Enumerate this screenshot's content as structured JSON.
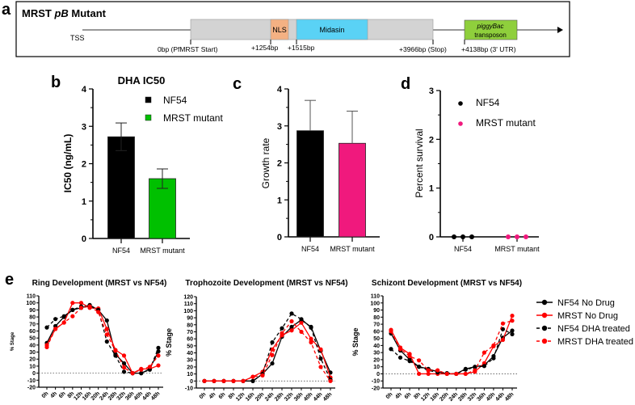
{
  "panel_labels": {
    "a": "a",
    "b": "b",
    "c": "c",
    "d": "d",
    "e": "e"
  },
  "gene_map": {
    "title_prefix": "MRST ",
    "title_italic": "pB",
    "title_suffix": " Mutant",
    "tss": "TSS",
    "nls": "NLS",
    "midasin": "Midasin",
    "pb_line1": "piggyBac",
    "pb_line2": "transposon",
    "positions": [
      "0bp (PfMRST Start)",
      "+1254bp",
      "+1515bp",
      "+3966bp (Stop)",
      "+4138bp (3' UTR)"
    ],
    "colors": {
      "gene": "#d3d3d3",
      "nls": "#f4b183",
      "midasin": "#5ad2f5",
      "transposon": "#8fcf3c"
    }
  },
  "chart_data": [
    {
      "type": "bar",
      "title": "DHA IC50",
      "ylabel": "IC50 (ng/mL)",
      "categories": [
        "NF54",
        "MRST mutant"
      ],
      "values": [
        2.72,
        1.6
      ],
      "errors": [
        0.37,
        0.26
      ],
      "colors": [
        "#000000",
        "#00c000"
      ],
      "yticks": [
        "0",
        "1",
        "2",
        "3",
        "4"
      ],
      "ylim": [
        0,
        4
      ],
      "legend": [
        "NF54",
        "MRST mutant"
      ]
    },
    {
      "type": "bar",
      "title": "",
      "ylabel": "Growth rate",
      "categories": [
        "NF54",
        "MRST mutant"
      ],
      "values": [
        2.87,
        2.53
      ],
      "errors": [
        0.82,
        0.87
      ],
      "colors": [
        "#000000",
        "#f0197d"
      ],
      "yticks": [
        "0",
        "1",
        "2",
        "3",
        "4"
      ],
      "ylim": [
        0,
        4
      ]
    },
    {
      "type": "scatter",
      "title": "",
      "ylabel": "Percent survival",
      "categories": [
        "NF54",
        "MRST mutant"
      ],
      "points": [
        [
          0,
          0,
          0
        ],
        [
          0,
          0,
          0
        ]
      ],
      "colors": [
        "#000000",
        "#f0197d"
      ],
      "yticks": [
        "0",
        "1",
        "2",
        "3"
      ],
      "ylim": [
        0,
        3
      ],
      "legend": [
        "NF54",
        "MRST mutant"
      ]
    },
    {
      "type": "line",
      "title": "Ring Development (MRST vs NF54)",
      "ylabel": "% Stage",
      "x": [
        "0h",
        "4h",
        "6h",
        "8h",
        "12h",
        "16h",
        "20h",
        "24h",
        "28h",
        "32h",
        "36h",
        "40h",
        "44h",
        "48h"
      ],
      "ylim": [
        -20,
        110
      ],
      "yticks": [
        "-20",
        "-10",
        "0",
        "10",
        "20",
        "30",
        "40",
        "50",
        "60",
        "70",
        "80",
        "90",
        "100",
        "110"
      ],
      "series": [
        {
          "name": "NF54 No Drug",
          "values": [
            43,
            67,
            80,
            90,
            93,
            97,
            90,
            75,
            27,
            14,
            0,
            0,
            6,
            31
          ]
        },
        {
          "name": "MRST No Drug",
          "values": [
            40,
            63,
            72,
            100,
            100,
            93,
            92,
            63,
            33,
            25,
            0,
            6,
            6,
            11
          ]
        },
        {
          "name": "NF54 DHA treated",
          "values": [
            65,
            77,
            81,
            90,
            95,
            95,
            90,
            45,
            25,
            2,
            0,
            0,
            5,
            36
          ]
        },
        {
          "name": "MRST DHA treated",
          "values": [
            37,
            63,
            72,
            81,
            93,
            95,
            87,
            55,
            32,
            8,
            0,
            5,
            9,
            25
          ]
        }
      ]
    },
    {
      "type": "line",
      "title": "Trophozoite Development (MRST vs NF54)",
      "ylabel": "% Stage",
      "x": [
        "0h",
        "4h",
        "6h",
        "8h",
        "12h",
        "16h",
        "20h",
        "24h",
        "28h",
        "32h",
        "36h",
        "40h",
        "44h",
        "48h"
      ],
      "ylim": [
        -10,
        120
      ],
      "yticks": [
        "-10",
        "0",
        "10",
        "20",
        "30",
        "40",
        "50",
        "60",
        "70",
        "80",
        "90",
        "100",
        "110",
        "120"
      ],
      "series": [
        {
          "name": "NF54 No Drug",
          "values": [
            0,
            0,
            0,
            0,
            0,
            0,
            10,
            25,
            63,
            77,
            87,
            77,
            43,
            12
          ]
        },
        {
          "name": "MRST No Drug",
          "values": [
            0,
            0,
            0,
            0,
            0,
            6,
            13,
            45,
            65,
            72,
            83,
            60,
            45,
            5
          ]
        },
        {
          "name": "NF54 DHA treated",
          "values": [
            0,
            0,
            0,
            0,
            0,
            0,
            10,
            55,
            75,
            96,
            88,
            76,
            32,
            2
          ]
        },
        {
          "name": "MRST DHA treated",
          "values": [
            0,
            0,
            0,
            0,
            0,
            6,
            8,
            37,
            68,
            85,
            70,
            55,
            20,
            0
          ]
        }
      ]
    },
    {
      "type": "line",
      "title": "Schizont Development (MRST vs NF54)",
      "ylabel": "% Stage",
      "x": [
        "0h",
        "4h",
        "6h",
        "8h",
        "12h",
        "16h",
        "20h",
        "24h",
        "28h",
        "32h",
        "36h",
        "40h",
        "44h",
        "48h"
      ],
      "ylim": [
        -20,
        110
      ],
      "yticks": [
        "-20",
        "-10",
        "0",
        "10",
        "20",
        "30",
        "40",
        "50",
        "60",
        "70",
        "80",
        "90",
        "100",
        "110"
      ],
      "series": [
        {
          "name": "NF54 No Drug",
          "values": [
            57,
            33,
            20,
            10,
            7,
            3,
            0,
            0,
            7,
            10,
            12,
            25,
            51,
            61
          ]
        },
        {
          "name": "MRST No Drug",
          "values": [
            62,
            37,
            28,
            0,
            0,
            0,
            0,
            0,
            0,
            3,
            15,
            39,
            48,
            82
          ]
        },
        {
          "name": "NF54 DHA treated",
          "values": [
            35,
            23,
            18,
            10,
            5,
            2,
            1,
            0,
            6,
            9,
            11,
            22,
            63,
            56
          ]
        },
        {
          "name": "MRST DHA treated",
          "values": [
            60,
            35,
            25,
            19,
            5,
            5,
            0,
            0,
            0,
            5,
            30,
            40,
            71,
            75
          ]
        }
      ]
    }
  ],
  "legend_e": [
    {
      "name": "NF54 No Drug",
      "color": "#000000",
      "dashed": false
    },
    {
      "name": "MRST No Drug",
      "color": "#ff0000",
      "dashed": false
    },
    {
      "name": "NF54 DHA treated",
      "color": "#000000",
      "dashed": true
    },
    {
      "name": "MRST DHA treated",
      "color": "#ff0000",
      "dashed": true
    }
  ]
}
